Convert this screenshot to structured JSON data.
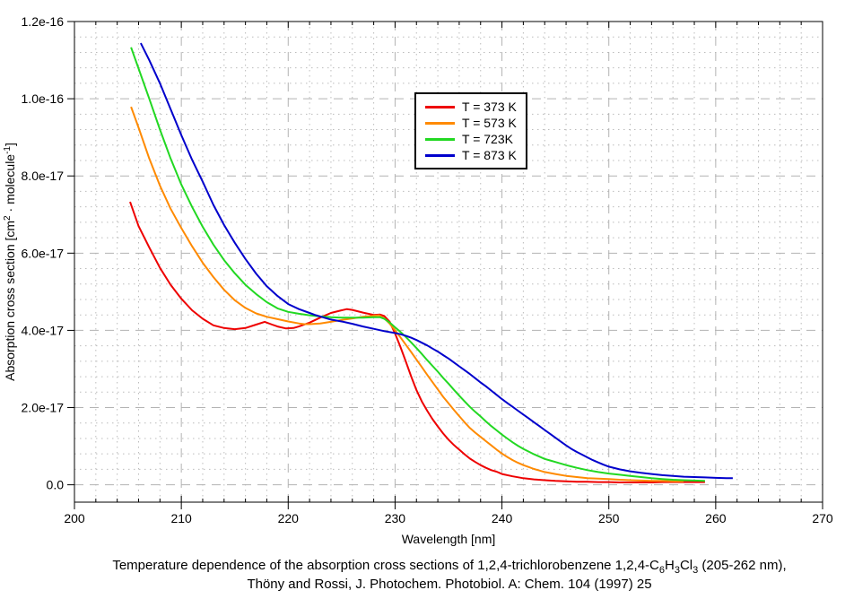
{
  "page": {
    "background": "#ffffff"
  },
  "caption": {
    "line1_parts": [
      {
        "t": "Temperature dependence of the absorption cross sections of 1,2,4-trichlorobenzene 1,2,4-C"
      },
      {
        "t": "6",
        "s": "sub"
      },
      {
        "t": "H"
      },
      {
        "t": "3",
        "s": "sub"
      },
      {
        "t": "Cl"
      },
      {
        "t": "3",
        "s": "sub"
      },
      {
        "t": " (205-262 nm),"
      }
    ],
    "line2": "Thöny and Rossi, J. Photochem. Photobiol. A: Chem. 104 (1997) 25"
  },
  "chart_data": {
    "type": "line",
    "title": "",
    "xlabel": "Wavelength [nm]",
    "ylabel_parts": [
      {
        "t": "Absorption cross section [cm"
      },
      {
        "t": "2",
        "s": "sup"
      },
      {
        "t": " · molecule"
      },
      {
        "t": "-1",
        "s": "sup"
      },
      {
        "t": "]"
      }
    ],
    "xlim": [
      200,
      270
    ],
    "ylim_e17": [
      -0.45,
      12
    ],
    "sigma_scale": "values stored as multiples of 1e-17 cm^2/molecule",
    "x_major_ticks": [
      200,
      210,
      220,
      230,
      240,
      250,
      260,
      270
    ],
    "x_minor_step": 2,
    "y_major_ticks": [
      {
        "v": 0,
        "label": "0.0"
      },
      {
        "v": 2,
        "label": "2.0e-17"
      },
      {
        "v": 4,
        "label": "4.0e-17"
      },
      {
        "v": 6,
        "label": "6.0e-17"
      },
      {
        "v": 8,
        "label": "8.0e-17"
      },
      {
        "v": 10,
        "label": "1.0e-16"
      },
      {
        "v": 12,
        "label": "1.2e-16"
      }
    ],
    "y_minor_step": 0.4,
    "grid": {
      "major_style": "dashed",
      "minor_style": "dotted",
      "major_color": "#b3b3b3",
      "minor_color": "#bcbcbc"
    },
    "legend_position": "upper-middle",
    "series": [
      {
        "name": "T = 373 K",
        "color": "#ee0000",
        "points": [
          [
            205.2,
            7.33
          ],
          [
            206,
            6.7
          ],
          [
            207,
            6.15
          ],
          [
            208,
            5.62
          ],
          [
            209,
            5.18
          ],
          [
            210,
            4.82
          ],
          [
            211,
            4.52
          ],
          [
            212,
            4.3
          ],
          [
            213,
            4.13
          ],
          [
            214,
            4.06
          ],
          [
            215,
            4.03
          ],
          [
            216,
            4.06
          ],
          [
            217,
            4.15
          ],
          [
            217.8,
            4.22
          ],
          [
            218.5,
            4.15
          ],
          [
            219,
            4.1
          ],
          [
            219.8,
            4.05
          ],
          [
            220.5,
            4.06
          ],
          [
            221,
            4.1
          ],
          [
            222,
            4.2
          ],
          [
            223,
            4.33
          ],
          [
            224,
            4.45
          ],
          [
            225,
            4.52
          ],
          [
            225.5,
            4.55
          ],
          [
            226,
            4.53
          ],
          [
            227,
            4.46
          ],
          [
            228,
            4.4
          ],
          [
            228.6,
            4.41
          ],
          [
            229,
            4.37
          ],
          [
            229.5,
            4.22
          ],
          [
            230,
            3.92
          ],
          [
            230.5,
            3.57
          ],
          [
            231,
            3.2
          ],
          [
            231.5,
            2.81
          ],
          [
            232,
            2.45
          ],
          [
            232.5,
            2.16
          ],
          [
            233,
            1.92
          ],
          [
            233.5,
            1.7
          ],
          [
            234,
            1.51
          ],
          [
            234.5,
            1.33
          ],
          [
            235,
            1.17
          ],
          [
            235.5,
            1.03
          ],
          [
            236,
            0.91
          ],
          [
            236.5,
            0.79
          ],
          [
            237,
            0.68
          ],
          [
            237.5,
            0.59
          ],
          [
            238,
            0.51
          ],
          [
            238.5,
            0.44
          ],
          [
            239,
            0.38
          ],
          [
            239.5,
            0.34
          ],
          [
            240,
            0.28
          ],
          [
            241,
            0.22
          ],
          [
            242,
            0.17
          ],
          [
            243,
            0.14
          ],
          [
            244,
            0.12
          ],
          [
            245,
            0.1
          ],
          [
            246,
            0.09
          ],
          [
            247,
            0.08
          ],
          [
            248,
            0.08
          ],
          [
            249,
            0.07
          ],
          [
            250,
            0.07
          ],
          [
            251,
            0.06
          ],
          [
            252,
            0.06
          ],
          [
            253,
            0.06
          ],
          [
            254,
            0.06
          ],
          [
            255,
            0.07
          ],
          [
            256,
            0.07
          ],
          [
            257,
            0.07
          ],
          [
            258,
            0.07
          ],
          [
            259,
            0.07
          ]
        ]
      },
      {
        "name": "T = 573 K",
        "color": "#ff8a00",
        "points": [
          [
            205.3,
            9.79
          ],
          [
            206,
            9.25
          ],
          [
            207,
            8.45
          ],
          [
            208,
            7.75
          ],
          [
            209,
            7.15
          ],
          [
            210,
            6.65
          ],
          [
            211,
            6.18
          ],
          [
            212,
            5.75
          ],
          [
            213,
            5.38
          ],
          [
            214,
            5.05
          ],
          [
            215,
            4.78
          ],
          [
            216,
            4.58
          ],
          [
            217,
            4.44
          ],
          [
            218,
            4.35
          ],
          [
            219,
            4.29
          ],
          [
            220,
            4.23
          ],
          [
            221,
            4.18
          ],
          [
            221.5,
            4.16
          ],
          [
            222,
            4.16
          ],
          [
            223,
            4.18
          ],
          [
            224,
            4.22
          ],
          [
            225,
            4.27
          ],
          [
            226,
            4.31
          ],
          [
            227,
            4.35
          ],
          [
            228,
            4.38
          ],
          [
            228.5,
            4.39
          ],
          [
            229,
            4.31
          ],
          [
            229.5,
            4.17
          ],
          [
            230,
            4.0
          ],
          [
            230.5,
            3.82
          ],
          [
            231,
            3.63
          ],
          [
            231.5,
            3.44
          ],
          [
            232,
            3.24
          ],
          [
            232.5,
            3.05
          ],
          [
            233,
            2.85
          ],
          [
            233.5,
            2.66
          ],
          [
            234,
            2.47
          ],
          [
            234.5,
            2.28
          ],
          [
            235,
            2.11
          ],
          [
            235.5,
            1.94
          ],
          [
            236,
            1.78
          ],
          [
            236.5,
            1.62
          ],
          [
            237,
            1.47
          ],
          [
            237.5,
            1.35
          ],
          [
            238,
            1.24
          ],
          [
            238.5,
            1.13
          ],
          [
            239,
            1.02
          ],
          [
            239.5,
            0.91
          ],
          [
            240,
            0.81
          ],
          [
            240.5,
            0.72
          ],
          [
            241,
            0.64
          ],
          [
            241.5,
            0.57
          ],
          [
            242,
            0.51
          ],
          [
            242.5,
            0.46
          ],
          [
            243,
            0.41
          ],
          [
            243.5,
            0.37
          ],
          [
            244,
            0.33
          ],
          [
            245,
            0.28
          ],
          [
            246,
            0.23
          ],
          [
            247,
            0.2
          ],
          [
            248,
            0.17
          ],
          [
            249,
            0.16
          ],
          [
            250,
            0.15
          ],
          [
            251,
            0.13
          ],
          [
            252,
            0.12
          ],
          [
            253,
            0.11
          ],
          [
            254,
            0.1
          ],
          [
            255,
            0.1
          ],
          [
            256,
            0.09
          ],
          [
            257,
            0.09
          ]
        ]
      },
      {
        "name": "T = 723K",
        "color": "#22d822",
        "points": [
          [
            205.3,
            11.33
          ],
          [
            206,
            10.78
          ],
          [
            207,
            10.0
          ],
          [
            208,
            9.2
          ],
          [
            209,
            8.45
          ],
          [
            210,
            7.78
          ],
          [
            211,
            7.2
          ],
          [
            212,
            6.68
          ],
          [
            213,
            6.22
          ],
          [
            214,
            5.82
          ],
          [
            215,
            5.48
          ],
          [
            216,
            5.18
          ],
          [
            217,
            4.94
          ],
          [
            218,
            4.73
          ],
          [
            219,
            4.57
          ],
          [
            220,
            4.48
          ],
          [
            221,
            4.43
          ],
          [
            222,
            4.39
          ],
          [
            223,
            4.36
          ],
          [
            224,
            4.34
          ],
          [
            225,
            4.33
          ],
          [
            226,
            4.33
          ],
          [
            227,
            4.33
          ],
          [
            228,
            4.34
          ],
          [
            228.6,
            4.34
          ],
          [
            229,
            4.3
          ],
          [
            229.5,
            4.2
          ],
          [
            230,
            4.08
          ],
          [
            230.5,
            3.96
          ],
          [
            231,
            3.83
          ],
          [
            231.5,
            3.69
          ],
          [
            232,
            3.54
          ],
          [
            232.5,
            3.39
          ],
          [
            233,
            3.23
          ],
          [
            233.5,
            3.08
          ],
          [
            234,
            2.93
          ],
          [
            234.5,
            2.77
          ],
          [
            235,
            2.62
          ],
          [
            235.5,
            2.46
          ],
          [
            236,
            2.31
          ],
          [
            236.5,
            2.16
          ],
          [
            237,
            2.02
          ],
          [
            237.5,
            1.89
          ],
          [
            238,
            1.77
          ],
          [
            238.5,
            1.64
          ],
          [
            239,
            1.52
          ],
          [
            239.5,
            1.41
          ],
          [
            240,
            1.3
          ],
          [
            240.5,
            1.2
          ],
          [
            241,
            1.1
          ],
          [
            241.5,
            1.01
          ],
          [
            242,
            0.93
          ],
          [
            242.5,
            0.86
          ],
          [
            243,
            0.79
          ],
          [
            243.5,
            0.73
          ],
          [
            244,
            0.67
          ],
          [
            244.5,
            0.63
          ],
          [
            245,
            0.59
          ],
          [
            245.5,
            0.55
          ],
          [
            246,
            0.51
          ],
          [
            247,
            0.44
          ],
          [
            248,
            0.38
          ],
          [
            249,
            0.33
          ],
          [
            250,
            0.29
          ],
          [
            251,
            0.26
          ],
          [
            252,
            0.23
          ],
          [
            253,
            0.2
          ],
          [
            254,
            0.17
          ],
          [
            255,
            0.15
          ],
          [
            256,
            0.13
          ],
          [
            257,
            0.12
          ],
          [
            258,
            0.11
          ],
          [
            259,
            0.1
          ]
        ]
      },
      {
        "name": "T = 873 K",
        "color": "#0000cc",
        "points": [
          [
            206.2,
            11.44
          ],
          [
            207,
            11.0
          ],
          [
            208,
            10.4
          ],
          [
            209,
            9.73
          ],
          [
            210,
            9.06
          ],
          [
            211,
            8.42
          ],
          [
            212,
            7.85
          ],
          [
            213,
            7.25
          ],
          [
            214,
            6.73
          ],
          [
            215,
            6.27
          ],
          [
            216,
            5.85
          ],
          [
            217,
            5.47
          ],
          [
            218,
            5.14
          ],
          [
            219,
            4.89
          ],
          [
            220,
            4.68
          ],
          [
            221,
            4.55
          ],
          [
            222,
            4.45
          ],
          [
            222.5,
            4.4
          ],
          [
            223,
            4.36
          ],
          [
            224,
            4.28
          ],
          [
            225,
            4.23
          ],
          [
            226,
            4.17
          ],
          [
            227,
            4.1
          ],
          [
            228,
            4.04
          ],
          [
            229,
            3.98
          ],
          [
            230,
            3.93
          ],
          [
            230.5,
            3.9
          ],
          [
            231,
            3.86
          ],
          [
            231.5,
            3.81
          ],
          [
            232,
            3.75
          ],
          [
            232.5,
            3.68
          ],
          [
            233,
            3.61
          ],
          [
            233.5,
            3.53
          ],
          [
            234,
            3.45
          ],
          [
            234.5,
            3.36
          ],
          [
            235,
            3.27
          ],
          [
            235.5,
            3.17
          ],
          [
            236,
            3.07
          ],
          [
            236.5,
            2.97
          ],
          [
            237,
            2.87
          ],
          [
            237.5,
            2.76
          ],
          [
            238,
            2.65
          ],
          [
            238.5,
            2.55
          ],
          [
            239,
            2.44
          ],
          [
            239.5,
            2.33
          ],
          [
            240,
            2.22
          ],
          [
            240.5,
            2.12
          ],
          [
            241,
            2.02
          ],
          [
            241.5,
            1.92
          ],
          [
            242,
            1.82
          ],
          [
            242.5,
            1.72
          ],
          [
            243,
            1.62
          ],
          [
            243.5,
            1.52
          ],
          [
            244,
            1.42
          ],
          [
            244.5,
            1.32
          ],
          [
            245,
            1.22
          ],
          [
            245.5,
            1.12
          ],
          [
            246,
            1.02
          ],
          [
            246.5,
            0.93
          ],
          [
            247,
            0.85
          ],
          [
            247.5,
            0.78
          ],
          [
            248,
            0.71
          ],
          [
            248.5,
            0.64
          ],
          [
            249,
            0.58
          ],
          [
            249.5,
            0.52
          ],
          [
            250,
            0.47
          ],
          [
            251,
            0.4
          ],
          [
            252,
            0.35
          ],
          [
            253,
            0.31
          ],
          [
            254,
            0.28
          ],
          [
            255,
            0.25
          ],
          [
            256,
            0.23
          ],
          [
            257,
            0.21
          ],
          [
            258,
            0.2
          ],
          [
            259,
            0.19
          ],
          [
            260,
            0.18
          ],
          [
            261,
            0.17
          ],
          [
            261.6,
            0.17
          ]
        ]
      }
    ]
  }
}
